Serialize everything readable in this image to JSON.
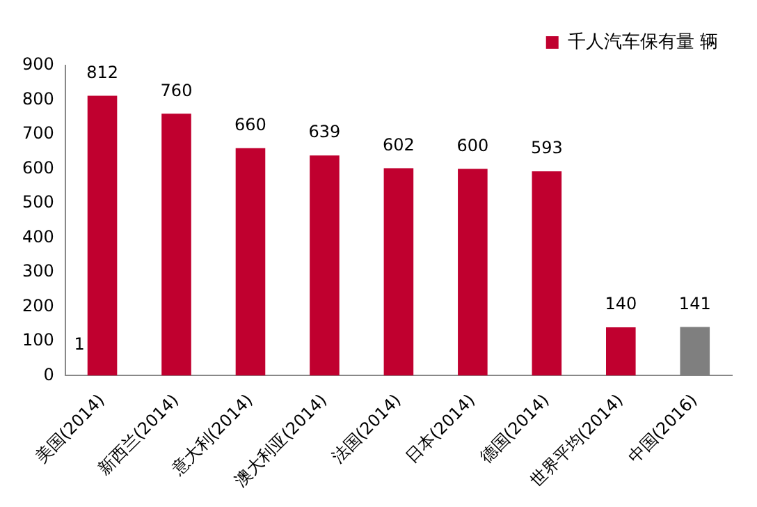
{
  "chart_data": {
    "type": "bar",
    "categories": [
      "美国(2014)",
      "新西兰(2014)",
      "意大利(2014)",
      "澳大利亚(2014)",
      "法国(2014)",
      "日本(2014)",
      "德国(2014)",
      "世界平均(2014)",
      "中国(2016)"
    ],
    "series": [
      {
        "name": "千人汽车保有量 辆",
        "color": "#c0002f",
        "colors": [
          "#c0002f",
          "#c0002f",
          "#c0002f",
          "#c0002f",
          "#c0002f",
          "#c0002f",
          "#c0002f",
          "#c0002f",
          "#7f7f7f"
        ],
        "values": [
          812,
          760,
          660,
          639,
          602,
          600,
          593,
          140,
          141
        ]
      }
    ],
    "ylim": [
      0,
      900
    ],
    "yticks": [
      0,
      100,
      200,
      300,
      400,
      500,
      600,
      700,
      800,
      900
    ],
    "grid": false,
    "legend": "top right",
    "data_labels": true,
    "annotations": [
      "1"
    ]
  }
}
